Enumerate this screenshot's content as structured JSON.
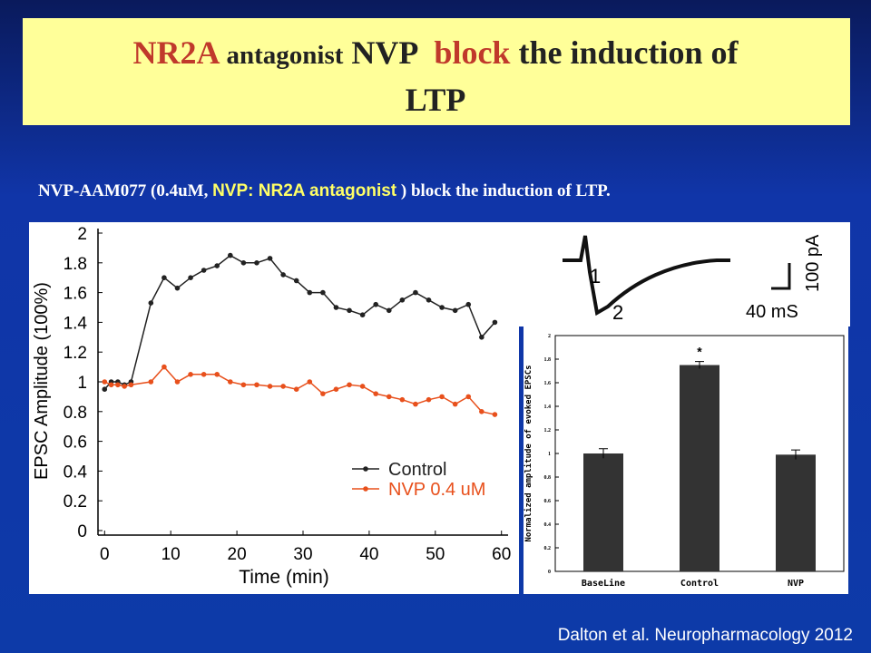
{
  "slide": {
    "title_parts": [
      "NR2A",
      "antagonist",
      "NVP",
      "block",
      "the induction of",
      "LTP"
    ],
    "subtitle_parts": [
      "NVP-AAM077 (0.4uM,",
      "NVP:  NR2A antagonist",
      ") block the induction of LTP."
    ],
    "citation": "Dalton et al. Neuropharmacology 2012",
    "inset": {
      "labels": [
        "1",
        "2",
        "100 pA",
        "40 mS"
      ]
    }
  },
  "chart_data": [
    {
      "type": "line",
      "x_label": "Time (min)",
      "y_label": "EPSC Amplitude (100%)",
      "x": [
        0,
        1,
        2,
        3,
        4,
        7,
        9,
        11,
        13,
        15,
        17,
        19,
        21,
        23,
        25,
        27,
        29,
        31,
        33,
        35,
        37,
        39,
        41,
        43,
        45,
        47,
        49,
        51,
        53,
        55,
        57,
        59
      ],
      "series": [
        {
          "name": "Control",
          "color": "#222222",
          "values": [
            0.95,
            1.0,
            1.0,
            0.98,
            1.0,
            1.53,
            1.7,
            1.63,
            1.7,
            1.75,
            1.78,
            1.85,
            1.8,
            1.8,
            1.83,
            1.72,
            1.68,
            1.6,
            1.6,
            1.5,
            1.48,
            1.45,
            1.52,
            1.48,
            1.55,
            1.6,
            1.55,
            1.5,
            1.48,
            1.52,
            1.3,
            1.4
          ]
        },
        {
          "name": "NVP 0.4 uM",
          "color": "#e8501c",
          "values": [
            1.0,
            0.98,
            0.98,
            0.97,
            0.98,
            1.0,
            1.1,
            1.0,
            1.05,
            1.05,
            1.05,
            1.0,
            0.98,
            0.98,
            0.97,
            0.97,
            0.95,
            1.0,
            0.92,
            0.95,
            0.98,
            0.97,
            0.92,
            0.9,
            0.88,
            0.85,
            0.88,
            0.9,
            0.85,
            0.9,
            0.8,
            0.78
          ]
        }
      ],
      "xlim": [
        -1,
        61
      ],
      "xticks": [
        0,
        10,
        20,
        30,
        40,
        50,
        60
      ],
      "ylim": [
        0,
        2
      ],
      "yticks": [
        0,
        0.2,
        0.4,
        0.6,
        0.8,
        1,
        1.2,
        1.4,
        1.6,
        1.8,
        2
      ],
      "legend": "lower right"
    },
    {
      "type": "bar",
      "y_label": "Normalized amplitude of evoked EPSCs",
      "categories": [
        "BaseLine",
        "Control",
        "NVP"
      ],
      "values": [
        1.0,
        1.75,
        0.99
      ],
      "errors": [
        0.04,
        0.03,
        0.04
      ],
      "color": "#333333",
      "annotation": "*",
      "ylim": [
        0,
        2
      ],
      "yticks": [
        0,
        0.2,
        0.4,
        0.6,
        0.8,
        1,
        1.2,
        1.4,
        1.6,
        1.8,
        2
      ]
    }
  ]
}
